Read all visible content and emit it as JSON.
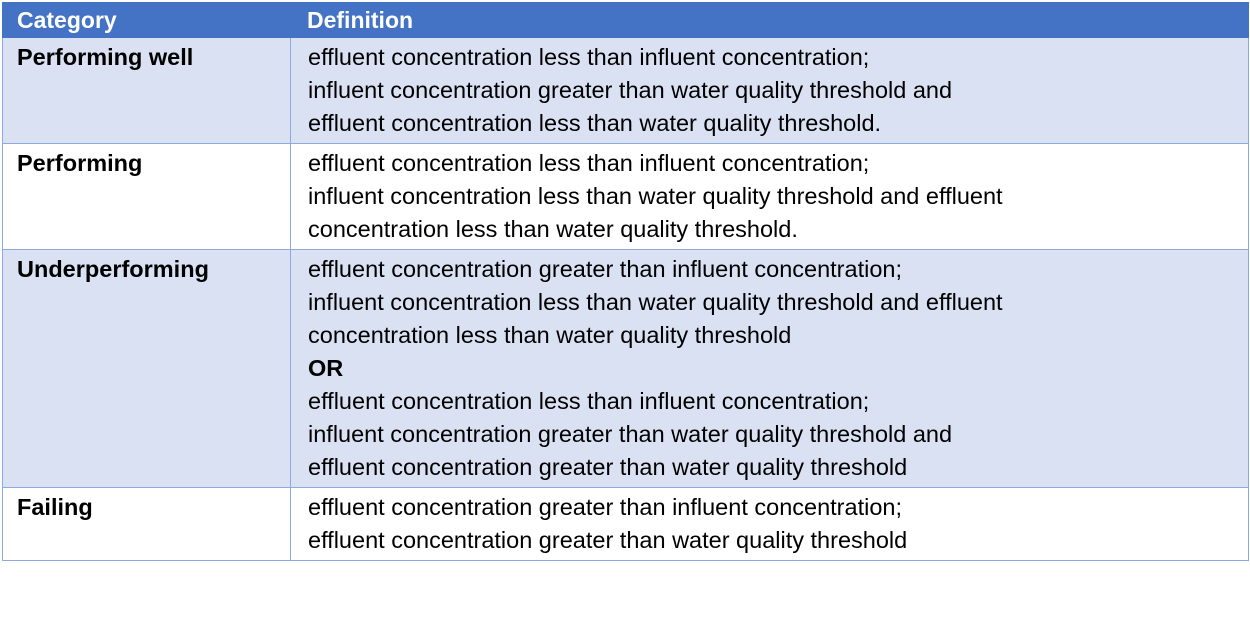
{
  "table": {
    "headers": [
      "Category",
      "Definition"
    ],
    "rows": [
      {
        "category": "Performing well",
        "definition": [
          {
            "text": "effluent concentration less than influent concentration;",
            "bold": false
          },
          {
            "text": "influent concentration greater than water quality threshold and",
            "bold": false
          },
          {
            "text": "effluent concentration less than water quality threshold.",
            "bold": false
          }
        ]
      },
      {
        "category": "Performing",
        "definition": [
          {
            "text": "effluent concentration less than influent concentration;",
            "bold": false
          },
          {
            "text": "influent concentration less than water quality threshold and effluent",
            "bold": false
          },
          {
            "text": "concentration less than water quality threshold.",
            "bold": false
          }
        ]
      },
      {
        "category": "Underperforming",
        "definition": [
          {
            "text": "effluent concentration greater than influent concentration;",
            "bold": false
          },
          {
            "text": "influent concentration less than water quality threshold and effluent",
            "bold": false
          },
          {
            "text": "concentration less than water quality threshold",
            "bold": false
          },
          {
            "text": "OR",
            "bold": true
          },
          {
            "text": "effluent concentration less than influent concentration;",
            "bold": false
          },
          {
            "text": "influent concentration greater than water quality threshold and",
            "bold": false
          },
          {
            "text": "effluent concentration greater than water quality threshold",
            "bold": false
          }
        ]
      },
      {
        "category": "Failing",
        "definition": [
          {
            "text": "effluent concentration greater than influent concentration;",
            "bold": false
          },
          {
            "text": "effluent concentration greater than water quality threshold",
            "bold": false
          }
        ]
      }
    ],
    "colors": {
      "header_bg": "#4472C4",
      "alt_row_bg": "#D9E1F2",
      "plain_row_bg": "#FFFFFF",
      "border": "#8EA9DB"
    }
  }
}
